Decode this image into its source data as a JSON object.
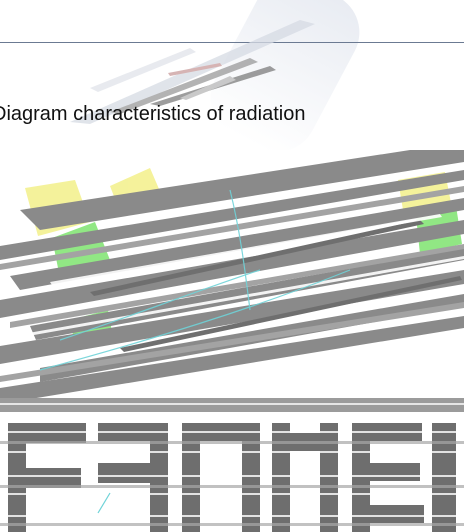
{
  "caption": "Diagram characteristics of radiation",
  "palette": {
    "streak_gray": "#8a8a8a",
    "highlight_green": "#7ee36f",
    "highlight_yellow": "#f3f08a",
    "accent_cyan": "#6fd3d8",
    "rule_color": "#6b7a92"
  },
  "figure": {
    "icon": "distorted-radiation-diagram-icon"
  },
  "logo": {
    "icon": "distorted-logo-icon"
  }
}
